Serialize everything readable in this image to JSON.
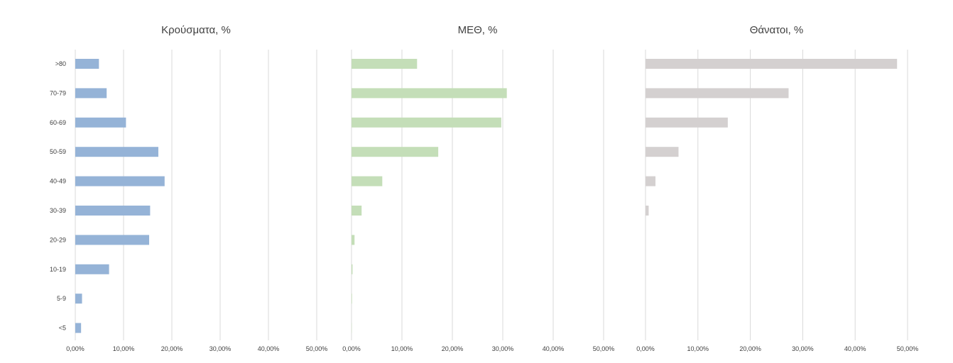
{
  "chart_data": {
    "type": "bar",
    "orientation": "horizontal",
    "categories": [
      ">80",
      "70-79",
      "60-69",
      "50-59",
      "40-49",
      "30-39",
      "20-29",
      "10-19",
      "5-9",
      "<5"
    ],
    "x_ticks": [
      "0,00%",
      "10,00%",
      "20,00%",
      "30,00%",
      "40,00%",
      "50,00%"
    ],
    "xlim": [
      0,
      50
    ],
    "grid": true,
    "legend": "none",
    "panels": [
      {
        "title": "Κρούσματα, %",
        "color": "#95b3d7",
        "values": [
          4.9,
          6.5,
          10.5,
          17.2,
          18.5,
          15.5,
          15.3,
          7.0,
          1.4,
          1.2
        ]
      },
      {
        "title": "ΜΕΘ, %",
        "color": "#c4deb8",
        "values": [
          13.0,
          30.8,
          29.7,
          17.2,
          6.1,
          2.0,
          0.6,
          0.2,
          0.1,
          0.05
        ]
      },
      {
        "title": "Θάνατοι, %",
        "color": "#d4d0d0",
        "values": [
          48.0,
          27.3,
          15.7,
          6.3,
          1.9,
          0.6,
          0,
          0,
          0,
          0
        ]
      }
    ]
  }
}
